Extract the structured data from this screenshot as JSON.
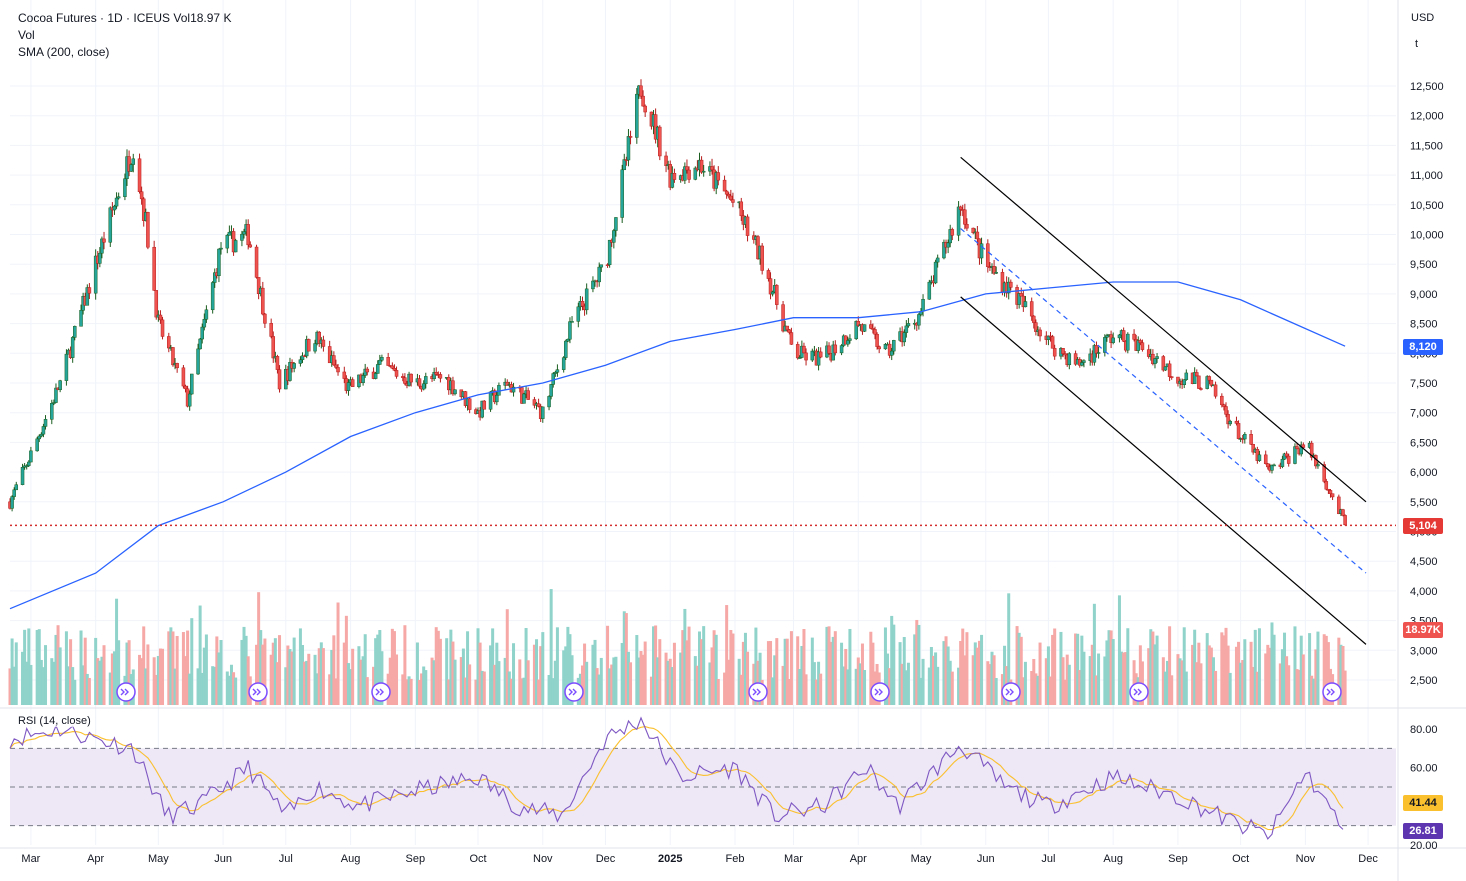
{
  "header": {
    "title_prefix": "Cocoa Futures · 1D · ICEUS",
    "vol_label": "Vol",
    "vol_value": "18.97 K",
    "indicator_vol": "Vol",
    "indicator_sma": "SMA (200, close)",
    "rsi_label": "RSI (14, close)"
  },
  "price_axis": {
    "currency": "USD",
    "unit": "t",
    "ticks": [
      "12,500",
      "12,000",
      "11,500",
      "11,000",
      "10,500",
      "10,000",
      "9,500",
      "9,000",
      "8,500",
      "8,000",
      "7,500",
      "7,000",
      "6,500",
      "6,000",
      "5,500",
      "5,000",
      "4,500",
      "4,000",
      "3,500",
      "3,000",
      "2,500"
    ]
  },
  "rsi_axis": {
    "ticks": [
      "80.00",
      "60.00",
      "20.00"
    ]
  },
  "time_axis": {
    "labels": [
      "Mar",
      "Apr",
      "May",
      "Jun",
      "Jul",
      "Aug",
      "Sep",
      "Oct",
      "Nov",
      "Dec",
      "2025",
      "Feb",
      "Mar",
      "Apr",
      "May",
      "Jun",
      "Jul",
      "Aug",
      "Sep",
      "Oct",
      "Nov",
      "Dec"
    ]
  },
  "badges": {
    "sma_value": "8,120",
    "last_price": "5,104",
    "volume": "18.97K",
    "rsi_ma": "41.44",
    "rsi_value": "26.81"
  },
  "colors": {
    "up": "#26a69a",
    "down": "#ef5350",
    "candle_body_up": "#1b5e20",
    "candle_body_down": "#b71c1c",
    "sma": "#2962ff",
    "rsi_line": "#7e57c2",
    "rsi_ma": "#fbc02d",
    "rsi_band": "#ede7f6",
    "channel": "#000000",
    "mid_line": "#2962ff",
    "last_price_line": "#d32f2f",
    "sma_badge": "#2962ff",
    "last_badge": "#e53935",
    "vol_badge": "#ef5350",
    "rsi_ma_badge": "#fbc02d",
    "rsi_badge": "#5e35b1"
  },
  "icons": [
    "dividend-arrow-icon"
  ],
  "chart_data": {
    "type": "candlestick",
    "title": "Cocoa Futures · 1D · ICEUS",
    "x_range": [
      "2024-02-20",
      "2025-11-30"
    ],
    "y_range": [
      2000,
      13000
    ],
    "close_points": [
      {
        "date": "2024-02-20",
        "close": 5500
      },
      {
        "date": "2024-03-01",
        "close": 6300
      },
      {
        "date": "2024-03-15",
        "close": 7500
      },
      {
        "date": "2024-04-01",
        "close": 9500
      },
      {
        "date": "2024-04-19",
        "close": 11500
      },
      {
        "date": "2024-04-25",
        "close": 10200
      },
      {
        "date": "2024-05-01",
        "close": 8500
      },
      {
        "date": "2024-05-15",
        "close": 7200
      },
      {
        "date": "2024-05-31",
        "close": 9800
      },
      {
        "date": "2024-06-13",
        "close": 10000
      },
      {
        "date": "2024-06-28",
        "close": 7500
      },
      {
        "date": "2024-07-15",
        "close": 8300
      },
      {
        "date": "2024-07-31",
        "close": 7400
      },
      {
        "date": "2024-08-15",
        "close": 7800
      },
      {
        "date": "2024-09-01",
        "close": 7500
      },
      {
        "date": "2024-09-15",
        "close": 7600
      },
      {
        "date": "2024-10-01",
        "close": 7000
      },
      {
        "date": "2024-10-15",
        "close": 7500
      },
      {
        "date": "2024-11-01",
        "close": 7000
      },
      {
        "date": "2024-11-15",
        "close": 8500
      },
      {
        "date": "2024-12-01",
        "close": 9500
      },
      {
        "date": "2024-12-18",
        "close": 12500
      },
      {
        "date": "2025-01-01",
        "close": 11000
      },
      {
        "date": "2025-01-15",
        "close": 11200
      },
      {
        "date": "2025-02-01",
        "close": 10500
      },
      {
        "date": "2025-02-15",
        "close": 9500
      },
      {
        "date": "2025-03-01",
        "close": 8000
      },
      {
        "date": "2025-03-15",
        "close": 7900
      },
      {
        "date": "2025-04-01",
        "close": 8500
      },
      {
        "date": "2025-04-15",
        "close": 8000
      },
      {
        "date": "2025-05-01",
        "close": 8700
      },
      {
        "date": "2025-05-20",
        "close": 10500
      },
      {
        "date": "2025-06-01",
        "close": 9500
      },
      {
        "date": "2025-06-15",
        "close": 9000
      },
      {
        "date": "2025-07-01",
        "close": 8200
      },
      {
        "date": "2025-07-15",
        "close": 7800
      },
      {
        "date": "2025-08-01",
        "close": 8300
      },
      {
        "date": "2025-08-15",
        "close": 8100
      },
      {
        "date": "2025-09-01",
        "close": 7600
      },
      {
        "date": "2025-09-15",
        "close": 7500
      },
      {
        "date": "2025-10-01",
        "close": 6600
      },
      {
        "date": "2025-10-15",
        "close": 6000
      },
      {
        "date": "2025-11-01",
        "close": 6500
      },
      {
        "date": "2025-11-10",
        "close": 5900
      },
      {
        "date": "2025-11-20",
        "close": 5104
      }
    ],
    "sma200": [
      {
        "date": "2024-02-20",
        "value": 3700
      },
      {
        "date": "2024-04-01",
        "value": 4300
      },
      {
        "date": "2024-05-01",
        "value": 5100
      },
      {
        "date": "2024-06-01",
        "value": 5500
      },
      {
        "date": "2024-07-01",
        "value": 6000
      },
      {
        "date": "2024-08-01",
        "value": 6600
      },
      {
        "date": "2024-09-01",
        "value": 7000
      },
      {
        "date": "2024-10-01",
        "value": 7300
      },
      {
        "date": "2024-11-01",
        "value": 7500
      },
      {
        "date": "2024-12-01",
        "value": 7800
      },
      {
        "date": "2025-01-01",
        "value": 8200
      },
      {
        "date": "2025-02-01",
        "value": 8400
      },
      {
        "date": "2025-03-01",
        "value": 8600
      },
      {
        "date": "2025-04-01",
        "value": 8600
      },
      {
        "date": "2025-05-01",
        "value": 8700
      },
      {
        "date": "2025-06-01",
        "value": 9000
      },
      {
        "date": "2025-07-01",
        "value": 9100
      },
      {
        "date": "2025-08-01",
        "value": 9200
      },
      {
        "date": "2025-09-01",
        "value": 9200
      },
      {
        "date": "2025-10-01",
        "value": 8900
      },
      {
        "date": "2025-11-20",
        "value": 8120
      }
    ],
    "last_price": 5104,
    "sma_last": 8120,
    "volume_last": "18.97K",
    "rsi": {
      "length": 14,
      "upper": 70,
      "middle": 50,
      "lower": 30,
      "last": 26.81,
      "ma_last": 41.44,
      "points": [
        {
          "date": "2024-02-20",
          "v": 75
        },
        {
          "date": "2024-03-15",
          "v": 80
        },
        {
          "date": "2024-04-01",
          "v": 75
        },
        {
          "date": "2024-04-19",
          "v": 70
        },
        {
          "date": "2024-05-05",
          "v": 35
        },
        {
          "date": "2024-05-20",
          "v": 40
        },
        {
          "date": "2024-06-13",
          "v": 60
        },
        {
          "date": "2024-07-01",
          "v": 35
        },
        {
          "date": "2024-07-15",
          "v": 50
        },
        {
          "date": "2024-08-05",
          "v": 40
        },
        {
          "date": "2024-09-01",
          "v": 48
        },
        {
          "date": "2024-10-01",
          "v": 55
        },
        {
          "date": "2024-10-20",
          "v": 40
        },
        {
          "date": "2024-11-10",
          "v": 35
        },
        {
          "date": "2024-12-01",
          "v": 75
        },
        {
          "date": "2024-12-18",
          "v": 85
        },
        {
          "date": "2025-01-05",
          "v": 55
        },
        {
          "date": "2025-02-01",
          "v": 60
        },
        {
          "date": "2025-02-20",
          "v": 35
        },
        {
          "date": "2025-03-15",
          "v": 40
        },
        {
          "date": "2025-04-05",
          "v": 60
        },
        {
          "date": "2025-04-20",
          "v": 40
        },
        {
          "date": "2025-05-20",
          "v": 72
        },
        {
          "date": "2025-06-10",
          "v": 50
        },
        {
          "date": "2025-07-01",
          "v": 40
        },
        {
          "date": "2025-08-01",
          "v": 55
        },
        {
          "date": "2025-09-01",
          "v": 45
        },
        {
          "date": "2025-10-01",
          "v": 30
        },
        {
          "date": "2025-10-15",
          "v": 25
        },
        {
          "date": "2025-11-01",
          "v": 58
        },
        {
          "date": "2025-11-20",
          "v": 26.81
        }
      ]
    },
    "channel": {
      "upper": [
        {
          "date": "2025-05-20",
          "price": 11300
        },
        {
          "date": "2025-11-30",
          "price": 5500
        }
      ],
      "lower": [
        {
          "date": "2025-05-20",
          "price": 8950
        },
        {
          "date": "2025-11-30",
          "price": 3100
        }
      ],
      "mid": [
        {
          "date": "2025-05-20",
          "price": 10100
        },
        {
          "date": "2025-11-30",
          "price": 4300
        }
      ]
    }
  }
}
